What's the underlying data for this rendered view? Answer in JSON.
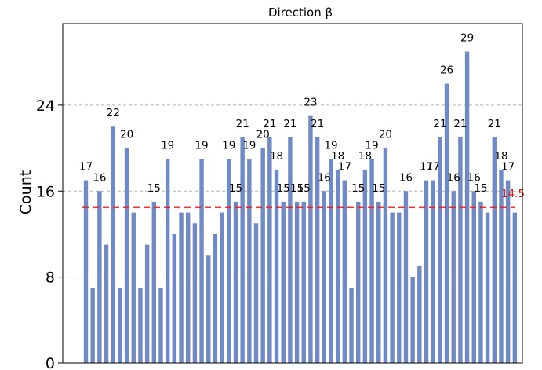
{
  "chart_data": {
    "type": "bar",
    "title": "Direction β",
    "ylabel": "Count",
    "ylim": [
      0,
      31.6
    ],
    "yticks": [
      0,
      8,
      16,
      24
    ],
    "grid": "horizontal-dashed",
    "bar_color": "#6f8ac5",
    "reference_line": {
      "value": 14.5,
      "label": "14.5",
      "color": "#e41a1c"
    },
    "values": [
      17,
      7,
      16,
      11,
      22,
      7,
      20,
      14,
      7,
      11,
      15,
      7,
      19,
      12,
      14,
      14,
      13,
      19,
      10,
      12,
      14,
      19,
      15,
      21,
      19,
      13,
      20,
      21,
      18,
      15,
      21,
      15,
      15,
      23,
      21,
      16,
      19,
      18,
      17,
      7,
      15,
      18,
      19,
      15,
      20,
      14,
      14,
      16,
      8,
      9,
      17,
      17,
      21,
      26,
      16,
      21,
      29,
      16,
      15,
      14,
      21,
      18,
      17,
      14
    ],
    "value_labels": [
      "17",
      "",
      "16",
      "",
      "22",
      "",
      "20",
      "",
      "",
      "",
      "15",
      "",
      "19",
      "",
      "",
      "",
      "",
      "19",
      "",
      "",
      "",
      "19",
      "15",
      "21",
      "19",
      "",
      "20",
      "21",
      "18",
      "15",
      "21",
      "15",
      "15",
      "23",
      "21",
      "16",
      "19",
      "18",
      "17",
      "",
      "15",
      "18",
      "19",
      "15",
      "20",
      "",
      "",
      "16",
      "",
      "",
      "17",
      "17",
      "21",
      "26",
      "16",
      "21",
      "29",
      "16",
      "15",
      "",
      "21",
      "18",
      "17",
      ""
    ]
  }
}
